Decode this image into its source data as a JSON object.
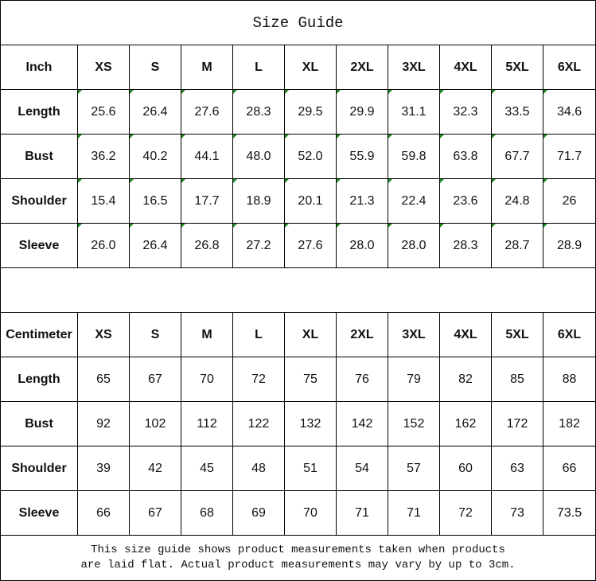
{
  "title": "Size Guide",
  "sizes": [
    "XS",
    "S",
    "M",
    "L",
    "XL",
    "2XL",
    "3XL",
    "4XL",
    "5XL",
    "6XL"
  ],
  "inch": {
    "unit_label": "Inch",
    "rows": [
      {
        "label": "Length",
        "values": [
          "25.6",
          "26.4",
          "27.6",
          "28.3",
          "29.5",
          "29.9",
          "31.1",
          "32.3",
          "33.5",
          "34.6"
        ]
      },
      {
        "label": "Bust",
        "values": [
          "36.2",
          "40.2",
          "44.1",
          "48.0",
          "52.0",
          "55.9",
          "59.8",
          "63.8",
          "67.7",
          "71.7"
        ]
      },
      {
        "label": "Shoulder",
        "values": [
          "15.4",
          "16.5",
          "17.7",
          "18.9",
          "20.1",
          "21.3",
          "22.4",
          "23.6",
          "24.8",
          "26"
        ]
      },
      {
        "label": "Sleeve",
        "values": [
          "26.0",
          "26.4",
          "26.8",
          "27.2",
          "27.6",
          "28.0",
          "28.0",
          "28.3",
          "28.7",
          "28.9"
        ]
      }
    ]
  },
  "cm": {
    "unit_label": "Centimeter",
    "rows": [
      {
        "label": "Length",
        "values": [
          "65",
          "67",
          "70",
          "72",
          "75",
          "76",
          "79",
          "82",
          "85",
          "88"
        ]
      },
      {
        "label": "Bust",
        "values": [
          "92",
          "102",
          "112",
          "122",
          "132",
          "142",
          "152",
          "162",
          "172",
          "182"
        ]
      },
      {
        "label": "Shoulder",
        "values": [
          "39",
          "42",
          "45",
          "48",
          "51",
          "54",
          "57",
          "60",
          "63",
          "66"
        ]
      },
      {
        "label": "Sleeve",
        "values": [
          "66",
          "67",
          "68",
          "69",
          "70",
          "71",
          "71",
          "72",
          "73",
          "73.5"
        ]
      }
    ]
  },
  "footer": {
    "line1": "This size guide shows product measurements taken when products",
    "line2": "are laid flat. Actual product measurements may vary by up to 3cm."
  },
  "colors": {
    "error_indicator": "#1a8a1a",
    "border": "#000000"
  }
}
